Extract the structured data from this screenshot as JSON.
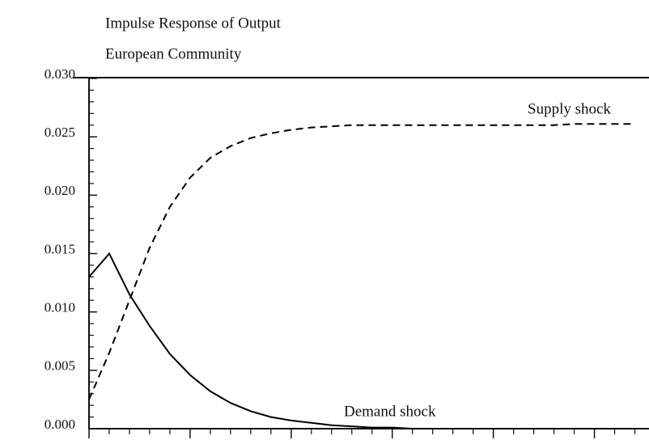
{
  "chart_data": {
    "type": "line",
    "title": "Impulse Response of Output",
    "subtitle": "European Community",
    "x": [
      0,
      1,
      2,
      3,
      4,
      5,
      6,
      7,
      8,
      9,
      10,
      11,
      12,
      13,
      14,
      15,
      16,
      17,
      18,
      19,
      20,
      21,
      22,
      23,
      24,
      25,
      26,
      27
    ],
    "series": [
      {
        "name": "Supply shock",
        "color": "#000000",
        "dash": true,
        "values": [
          0.0025,
          0.0065,
          0.011,
          0.0155,
          0.019,
          0.0215,
          0.0232,
          0.0242,
          0.0249,
          0.0253,
          0.0256,
          0.0258,
          0.0259,
          0.026,
          0.026,
          0.026,
          0.026,
          0.026,
          0.026,
          0.026,
          0.026,
          0.026,
          0.026,
          0.026,
          0.0261,
          0.0261,
          0.0261,
          0.0261
        ]
      },
      {
        "name": "Demand shock",
        "color": "#000000",
        "dash": false,
        "values": [
          0.013,
          0.015,
          0.0115,
          0.0088,
          0.0064,
          0.0046,
          0.0032,
          0.0022,
          0.0015,
          0.001,
          0.0007,
          0.0005,
          0.0003,
          0.0002,
          0.0001,
          0.0001,
          0,
          0,
          0,
          0,
          0,
          0,
          0,
          0,
          0,
          0,
          0,
          0
        ]
      }
    ],
    "xlim": [
      0,
      27.7
    ],
    "xticks": [
      0,
      5,
      10,
      15,
      20,
      25
    ],
    "ylim": [
      0,
      0.03
    ],
    "yticks": [
      {
        "value": 0,
        "label": "0.000"
      },
      {
        "value": 0.005,
        "label": "0.005"
      },
      {
        "value": 0.01,
        "label": "0.010"
      },
      {
        "value": 0.015,
        "label": "0.015"
      },
      {
        "value": 0.02,
        "label": "0.020"
      },
      {
        "value": 0.025,
        "label": "0.025"
      },
      {
        "value": 0.03,
        "label": "0.030"
      }
    ]
  }
}
